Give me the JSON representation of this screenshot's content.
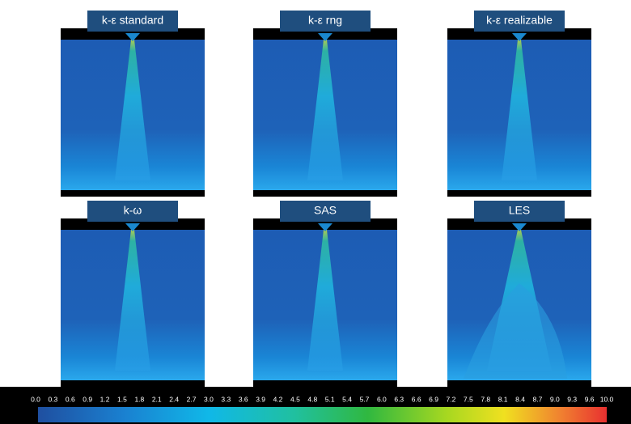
{
  "panels": [
    {
      "label": "k-ε standard"
    },
    {
      "label": "k-ε rng"
    },
    {
      "label": "k-ε realizable"
    },
    {
      "label": "k-ω"
    },
    {
      "label": "SAS"
    },
    {
      "label": "LES"
    }
  ],
  "colorbar": {
    "ticks": [
      "0.0",
      "0.3",
      "0.6",
      "0.9",
      "1.2",
      "1.5",
      "1.8",
      "2.1",
      "2.4",
      "2.7",
      "3.0",
      "3.3",
      "3.6",
      "3.9",
      "4.2",
      "4.5",
      "4.8",
      "5.1",
      "5.4",
      "5.7",
      "6.0",
      "6.3",
      "6.6",
      "6.9",
      "7.2",
      "7.5",
      "7.8",
      "8.1",
      "8.4",
      "8.7",
      "9.0",
      "9.3",
      "9.6",
      "10.0"
    ]
  }
}
